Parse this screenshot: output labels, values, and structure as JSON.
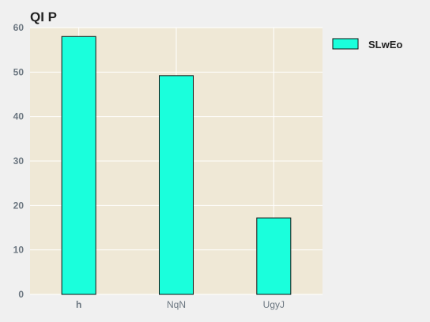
{
  "chart_data": {
    "type": "bar",
    "title": "QI P",
    "xlabel": "",
    "ylabel": "",
    "categories": [
      "h",
      "NqN",
      "UgyJ"
    ],
    "category_bold": [
      true,
      false,
      false
    ],
    "series": [
      {
        "name": "SLwEo",
        "values": [
          58,
          49.2,
          17.2
        ],
        "color": "#1affdc"
      }
    ],
    "ylim": [
      0,
      60
    ],
    "yticks": [
      "0",
      "10",
      "20",
      "30",
      "40",
      "50",
      "60"
    ],
    "grid": true,
    "legend_position": "right",
    "colors": {
      "plot_background": "#efe8d6",
      "page_background": "#f0f0f0",
      "grid": "#ffffff",
      "bar_edge": "#111111"
    }
  }
}
